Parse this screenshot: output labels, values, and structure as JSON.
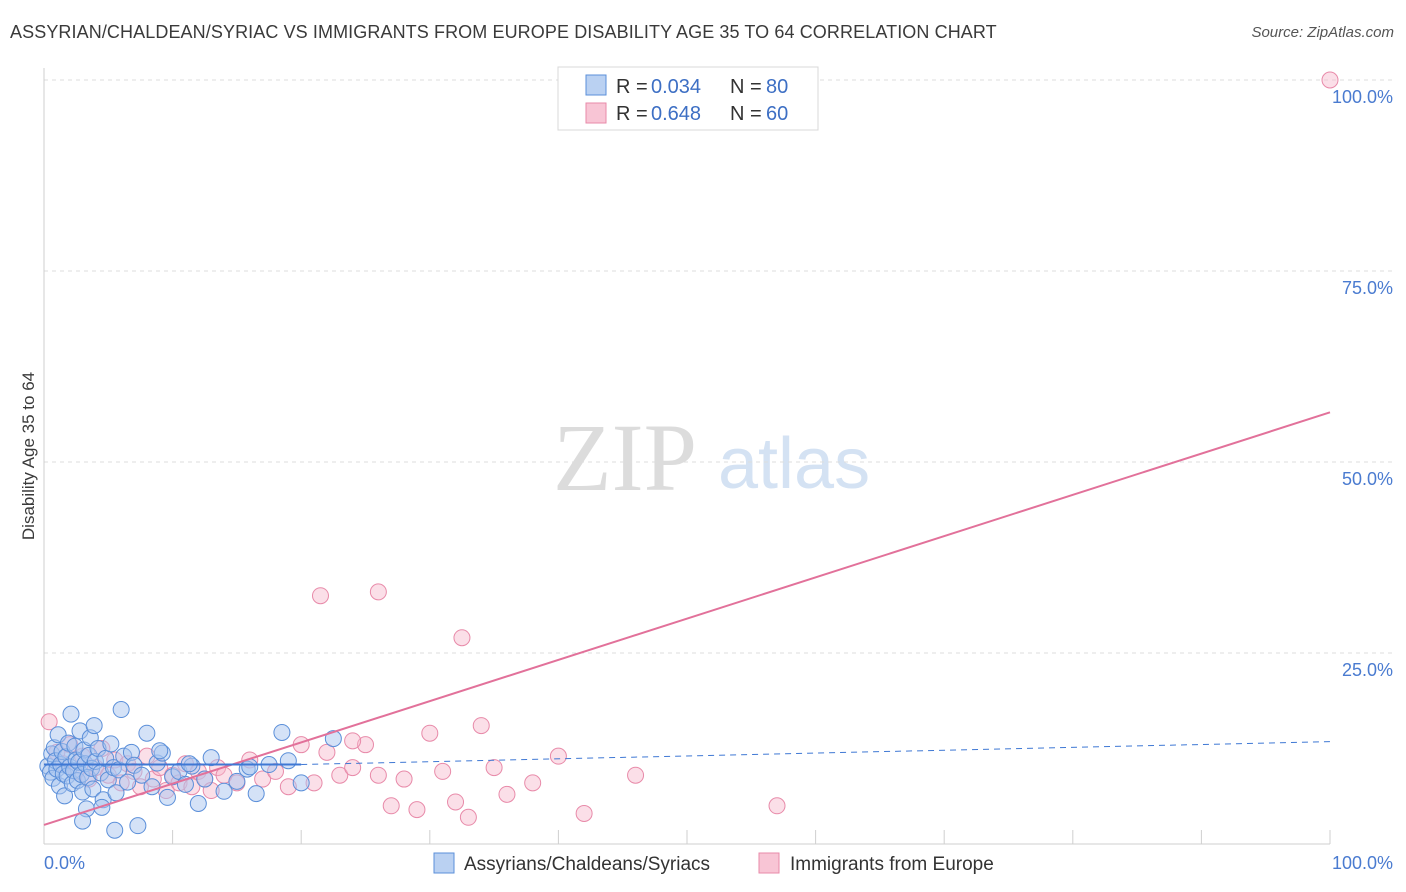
{
  "header": {
    "title": "ASSYRIAN/CHALDEAN/SYRIAC VS IMMIGRANTS FROM EUROPE DISABILITY AGE 35 TO 64 CORRELATION CHART",
    "source": "Source: ZipAtlas.com"
  },
  "watermark": {
    "zip": "ZIP",
    "atlas": "atlas"
  },
  "legend": {
    "r_label": "R =",
    "n_label": "N =",
    "items": [
      {
        "r": "0.034",
        "n": "80"
      },
      {
        "r": "0.648",
        "n": "60"
      }
    ]
  },
  "colors": {
    "blue_fill": "#a9c6ef",
    "blue_stroke": "#5b8fd9",
    "blue_line": "#3f78d4",
    "pink_fill": "#f6b7cb",
    "pink_stroke": "#e88aa9",
    "pink_line": "#e2719a",
    "grid": "#dddddd",
    "tick_text": "#4a7bd0"
  },
  "chart_data": {
    "type": "scatter",
    "title": "ASSYRIAN/CHALDEAN/SYRIAC VS IMMIGRANTS FROM EUROPE DISABILITY AGE 35 TO 64 CORRELATION CHART",
    "xlabel": "",
    "ylabel": "Disability Age 35 to 64",
    "xlim": [
      0,
      100
    ],
    "ylim": [
      0,
      100
    ],
    "x_tick_labels": [
      "0.0%",
      "100.0%"
    ],
    "y_ticks": [
      25,
      50,
      75,
      100
    ],
    "y_tick_labels": [
      "25.0%",
      "50.0%",
      "75.0%",
      "100.0%"
    ],
    "grid": true,
    "legend_position": "bottom",
    "series": [
      {
        "name": "Assyrians/Chaldeans/Syriacs",
        "color": "blue",
        "r": 0.034,
        "n": 80,
        "trend": {
          "x": [
            0,
            20
          ],
          "y": [
            10.4,
            10.4
          ],
          "dashed_to": [
            100,
            13.4
          ]
        },
        "points": [
          [
            0.3,
            10.2
          ],
          [
            0.5,
            9.4
          ],
          [
            0.6,
            11.8
          ],
          [
            0.7,
            8.6
          ],
          [
            0.8,
            12.6
          ],
          [
            0.9,
            10.9
          ],
          [
            1.0,
            9.8
          ],
          [
            1.1,
            14.3
          ],
          [
            1.2,
            7.6
          ],
          [
            1.3,
            10.4
          ],
          [
            1.4,
            12.1
          ],
          [
            1.5,
            9.2
          ],
          [
            1.6,
            6.3
          ],
          [
            1.7,
            11.4
          ],
          [
            1.8,
            8.9
          ],
          [
            1.9,
            13.2
          ],
          [
            2.0,
            10.1
          ],
          [
            2.1,
            17.0
          ],
          [
            2.2,
            7.9
          ],
          [
            2.3,
            9.6
          ],
          [
            2.4,
            12.8
          ],
          [
            2.5,
            11.0
          ],
          [
            2.6,
            8.3
          ],
          [
            2.7,
            10.7
          ],
          [
            2.8,
            14.8
          ],
          [
            2.9,
            9.1
          ],
          [
            3.0,
            6.8
          ],
          [
            3.1,
            12.3
          ],
          [
            3.2,
            10.5
          ],
          [
            3.3,
            4.6
          ],
          [
            3.4,
            8.7
          ],
          [
            3.5,
            11.6
          ],
          [
            3.6,
            13.9
          ],
          [
            3.7,
            9.9
          ],
          [
            3.8,
            7.2
          ],
          [
            3.9,
            15.5
          ],
          [
            4.0,
            10.8
          ],
          [
            4.2,
            12.5
          ],
          [
            4.4,
            9.3
          ],
          [
            4.6,
            5.8
          ],
          [
            4.8,
            11.2
          ],
          [
            5.0,
            8.4
          ],
          [
            5.2,
            13.1
          ],
          [
            5.4,
            10.0
          ],
          [
            5.6,
            6.7
          ],
          [
            5.8,
            9.7
          ],
          [
            6.0,
            17.6
          ],
          [
            6.2,
            11.5
          ],
          [
            6.5,
            8.1
          ],
          [
            6.8,
            12.0
          ],
          [
            7.0,
            10.3
          ],
          [
            7.3,
            2.4
          ],
          [
            7.6,
            9.0
          ],
          [
            8.0,
            14.5
          ],
          [
            8.4,
            7.5
          ],
          [
            8.8,
            10.6
          ],
          [
            9.2,
            11.9
          ],
          [
            9.6,
            6.1
          ],
          [
            10.0,
            8.8
          ],
          [
            10.5,
            9.5
          ],
          [
            11.0,
            7.8
          ],
          [
            11.5,
            10.2
          ],
          [
            12.0,
            5.3
          ],
          [
            12.5,
            8.5
          ],
          [
            13.0,
            11.3
          ],
          [
            14.0,
            6.9
          ],
          [
            15.0,
            8.2
          ],
          [
            15.8,
            9.8
          ],
          [
            16.5,
            6.6
          ],
          [
            17.5,
            10.4
          ],
          [
            18.5,
            14.6
          ],
          [
            19.0,
            10.9
          ],
          [
            20.0,
            8.0
          ],
          [
            3.0,
            3.0
          ],
          [
            4.5,
            4.8
          ],
          [
            5.5,
            1.8
          ],
          [
            9.0,
            12.2
          ],
          [
            11.3,
            10.5
          ],
          [
            16.0,
            10.1
          ],
          [
            22.5,
            13.8
          ]
        ]
      },
      {
        "name": "Immigrants from Europe",
        "color": "pink",
        "r": 0.648,
        "n": 60,
        "trend": {
          "x": [
            0,
            100
          ],
          "y": [
            2.5,
            56.5
          ]
        },
        "points": [
          [
            0.4,
            16.0
          ],
          [
            1.0,
            12.0
          ],
          [
            1.5,
            10.5
          ],
          [
            2.0,
            13.0
          ],
          [
            2.5,
            9.5
          ],
          [
            3.0,
            11.5
          ],
          [
            3.5,
            8.5
          ],
          [
            4.0,
            10.0
          ],
          [
            4.5,
            12.5
          ],
          [
            5.0,
            9.0
          ],
          [
            5.5,
            11.0
          ],
          [
            6.0,
            8.0
          ],
          [
            6.5,
            10.5
          ],
          [
            7.0,
            9.5
          ],
          [
            7.5,
            7.5
          ],
          [
            8.0,
            11.5
          ],
          [
            8.5,
            8.5
          ],
          [
            9.0,
            10.0
          ],
          [
            9.5,
            7.0
          ],
          [
            10.0,
            9.0
          ],
          [
            10.5,
            8.0
          ],
          [
            11.0,
            10.5
          ],
          [
            11.5,
            7.5
          ],
          [
            12.0,
            9.5
          ],
          [
            12.5,
            8.5
          ],
          [
            13.0,
            7.0
          ],
          [
            13.5,
            10.0
          ],
          [
            14.0,
            9.0
          ],
          [
            15.0,
            8.0
          ],
          [
            16.0,
            11.0
          ],
          [
            17.0,
            8.5
          ],
          [
            18.0,
            9.5
          ],
          [
            19.0,
            7.5
          ],
          [
            20.0,
            13.0
          ],
          [
            21.0,
            8.0
          ],
          [
            22.0,
            12.0
          ],
          [
            23.0,
            9.0
          ],
          [
            24.0,
            10.0
          ],
          [
            25.0,
            13.0
          ],
          [
            26.0,
            9.0
          ],
          [
            27.0,
            5.0
          ],
          [
            28.0,
            8.5
          ],
          [
            29.0,
            4.5
          ],
          [
            30.0,
            14.5
          ],
          [
            31.0,
            9.5
          ],
          [
            32.0,
            5.5
          ],
          [
            33.0,
            3.5
          ],
          [
            34.0,
            15.5
          ],
          [
            35.0,
            10.0
          ],
          [
            36.0,
            6.5
          ],
          [
            21.5,
            32.5
          ],
          [
            26.0,
            33.0
          ],
          [
            32.5,
            27.0
          ],
          [
            24.0,
            13.5
          ],
          [
            38.0,
            8.0
          ],
          [
            40.0,
            11.5
          ],
          [
            42.0,
            4.0
          ],
          [
            46.0,
            9.0
          ],
          [
            57.0,
            5.0
          ],
          [
            100.0,
            100.0
          ]
        ]
      }
    ]
  },
  "bottom_legend": {
    "items": [
      "Assyrians/Chaldeans/Syriacs",
      "Immigrants from Europe"
    ]
  }
}
